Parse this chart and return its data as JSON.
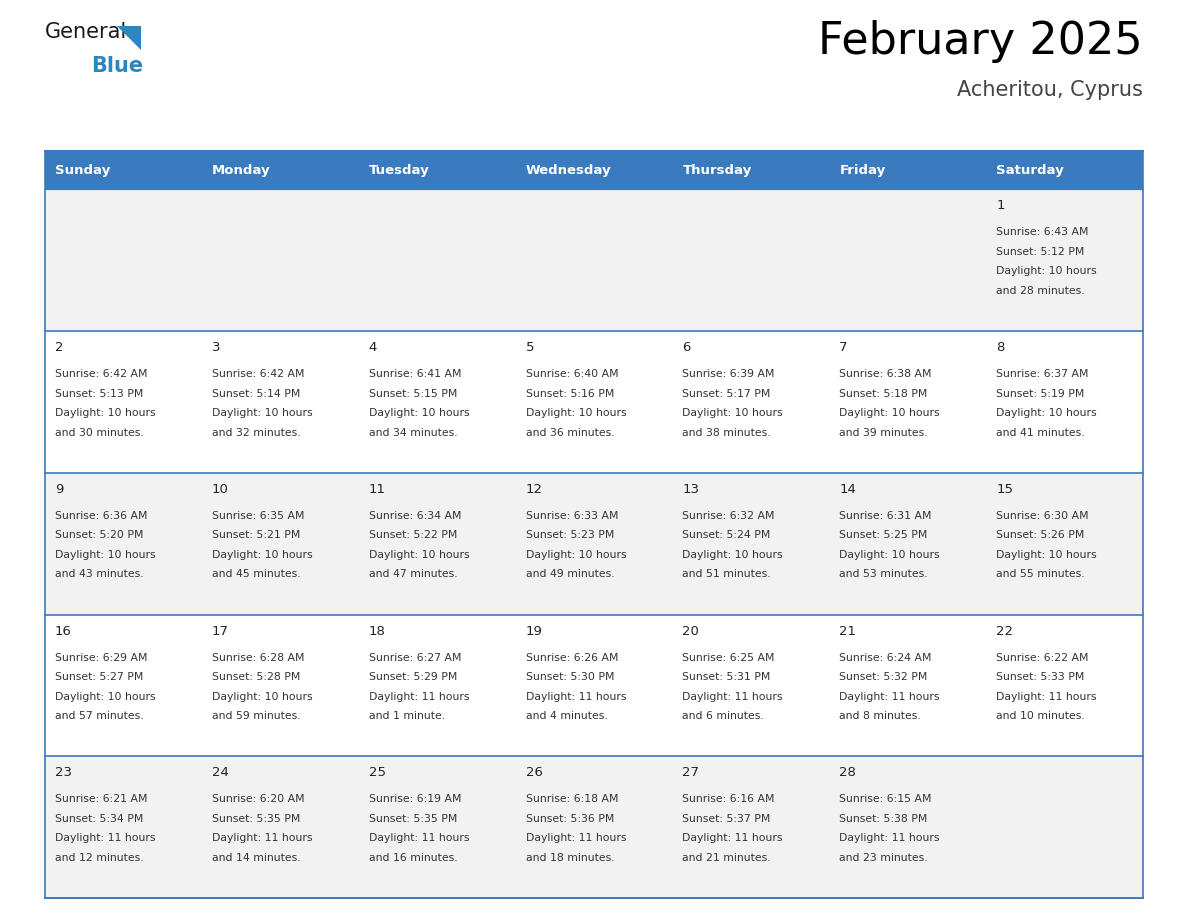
{
  "title": "February 2025",
  "subtitle": "Acheritou, Cyprus",
  "header_bg_color": "#3A7BBF",
  "header_text_color": "#FFFFFF",
  "cell_bg_color_odd": "#F2F2F2",
  "cell_bg_color_even": "#FFFFFF",
  "border_color": "#3A7BBF",
  "days_of_week": [
    "Sunday",
    "Monday",
    "Tuesday",
    "Wednesday",
    "Thursday",
    "Friday",
    "Saturday"
  ],
  "weeks": [
    [
      {
        "day": "",
        "info": ""
      },
      {
        "day": "",
        "info": ""
      },
      {
        "day": "",
        "info": ""
      },
      {
        "day": "",
        "info": ""
      },
      {
        "day": "",
        "info": ""
      },
      {
        "day": "",
        "info": ""
      },
      {
        "day": "1",
        "info": "Sunrise: 6:43 AM\nSunset: 5:12 PM\nDaylight: 10 hours\nand 28 minutes."
      }
    ],
    [
      {
        "day": "2",
        "info": "Sunrise: 6:42 AM\nSunset: 5:13 PM\nDaylight: 10 hours\nand 30 minutes."
      },
      {
        "day": "3",
        "info": "Sunrise: 6:42 AM\nSunset: 5:14 PM\nDaylight: 10 hours\nand 32 minutes."
      },
      {
        "day": "4",
        "info": "Sunrise: 6:41 AM\nSunset: 5:15 PM\nDaylight: 10 hours\nand 34 minutes."
      },
      {
        "day": "5",
        "info": "Sunrise: 6:40 AM\nSunset: 5:16 PM\nDaylight: 10 hours\nand 36 minutes."
      },
      {
        "day": "6",
        "info": "Sunrise: 6:39 AM\nSunset: 5:17 PM\nDaylight: 10 hours\nand 38 minutes."
      },
      {
        "day": "7",
        "info": "Sunrise: 6:38 AM\nSunset: 5:18 PM\nDaylight: 10 hours\nand 39 minutes."
      },
      {
        "day": "8",
        "info": "Sunrise: 6:37 AM\nSunset: 5:19 PM\nDaylight: 10 hours\nand 41 minutes."
      }
    ],
    [
      {
        "day": "9",
        "info": "Sunrise: 6:36 AM\nSunset: 5:20 PM\nDaylight: 10 hours\nand 43 minutes."
      },
      {
        "day": "10",
        "info": "Sunrise: 6:35 AM\nSunset: 5:21 PM\nDaylight: 10 hours\nand 45 minutes."
      },
      {
        "day": "11",
        "info": "Sunrise: 6:34 AM\nSunset: 5:22 PM\nDaylight: 10 hours\nand 47 minutes."
      },
      {
        "day": "12",
        "info": "Sunrise: 6:33 AM\nSunset: 5:23 PM\nDaylight: 10 hours\nand 49 minutes."
      },
      {
        "day": "13",
        "info": "Sunrise: 6:32 AM\nSunset: 5:24 PM\nDaylight: 10 hours\nand 51 minutes."
      },
      {
        "day": "14",
        "info": "Sunrise: 6:31 AM\nSunset: 5:25 PM\nDaylight: 10 hours\nand 53 minutes."
      },
      {
        "day": "15",
        "info": "Sunrise: 6:30 AM\nSunset: 5:26 PM\nDaylight: 10 hours\nand 55 minutes."
      }
    ],
    [
      {
        "day": "16",
        "info": "Sunrise: 6:29 AM\nSunset: 5:27 PM\nDaylight: 10 hours\nand 57 minutes."
      },
      {
        "day": "17",
        "info": "Sunrise: 6:28 AM\nSunset: 5:28 PM\nDaylight: 10 hours\nand 59 minutes."
      },
      {
        "day": "18",
        "info": "Sunrise: 6:27 AM\nSunset: 5:29 PM\nDaylight: 11 hours\nand 1 minute."
      },
      {
        "day": "19",
        "info": "Sunrise: 6:26 AM\nSunset: 5:30 PM\nDaylight: 11 hours\nand 4 minutes."
      },
      {
        "day": "20",
        "info": "Sunrise: 6:25 AM\nSunset: 5:31 PM\nDaylight: 11 hours\nand 6 minutes."
      },
      {
        "day": "21",
        "info": "Sunrise: 6:24 AM\nSunset: 5:32 PM\nDaylight: 11 hours\nand 8 minutes."
      },
      {
        "day": "22",
        "info": "Sunrise: 6:22 AM\nSunset: 5:33 PM\nDaylight: 11 hours\nand 10 minutes."
      }
    ],
    [
      {
        "day": "23",
        "info": "Sunrise: 6:21 AM\nSunset: 5:34 PM\nDaylight: 11 hours\nand 12 minutes."
      },
      {
        "day": "24",
        "info": "Sunrise: 6:20 AM\nSunset: 5:35 PM\nDaylight: 11 hours\nand 14 minutes."
      },
      {
        "day": "25",
        "info": "Sunrise: 6:19 AM\nSunset: 5:35 PM\nDaylight: 11 hours\nand 16 minutes."
      },
      {
        "day": "26",
        "info": "Sunrise: 6:18 AM\nSunset: 5:36 PM\nDaylight: 11 hours\nand 18 minutes."
      },
      {
        "day": "27",
        "info": "Sunrise: 6:16 AM\nSunset: 5:37 PM\nDaylight: 11 hours\nand 21 minutes."
      },
      {
        "day": "28",
        "info": "Sunrise: 6:15 AM\nSunset: 5:38 PM\nDaylight: 11 hours\nand 23 minutes."
      },
      {
        "day": "",
        "info": ""
      }
    ]
  ],
  "logo_color_general": "#1a1a1a",
  "logo_color_blue": "#2E86C1",
  "logo_triangle_color": "#2E86C1",
  "fig_width": 11.88,
  "fig_height": 9.18,
  "dpi": 100
}
